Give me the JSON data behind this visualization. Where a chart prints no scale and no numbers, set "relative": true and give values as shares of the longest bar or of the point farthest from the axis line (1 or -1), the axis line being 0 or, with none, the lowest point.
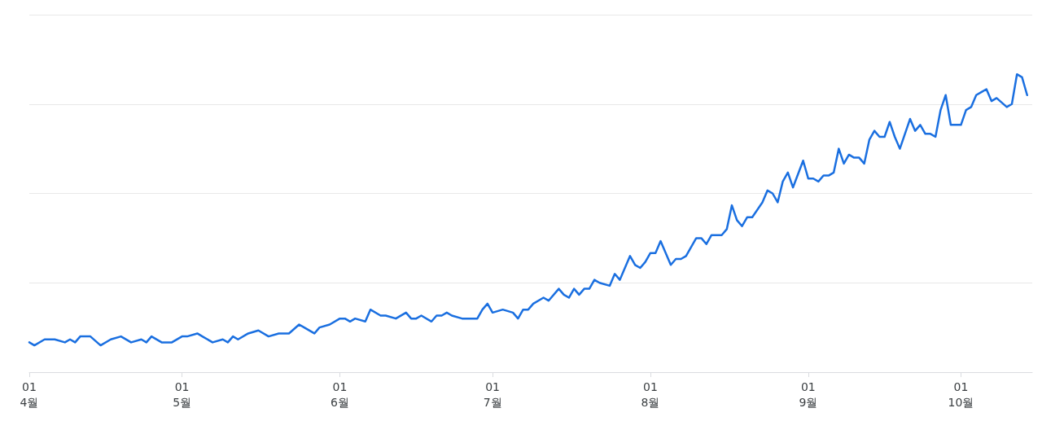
{
  "chart_data": {
    "type": "line",
    "relative": true,
    "marker": "none",
    "grid": "y",
    "line_style": "solid",
    "xlim": [
      "--04-01",
      "--10-15"
    ],
    "xticks": [
      {
        "value": "--04-01",
        "label": "01\n4월"
      },
      {
        "value": "--05-01",
        "label": "01\n5월"
      },
      {
        "value": "--06-01",
        "label": "01\n6월"
      },
      {
        "value": "--07-01",
        "label": "01\n7월"
      },
      {
        "value": "--08-01",
        "label": "01\n8월"
      },
      {
        "value": "--09-01",
        "label": "01\n9월"
      },
      {
        "value": "--10-01",
        "label": "01\n10월"
      }
    ],
    "series": [
      {
        "color": "#1a6fe0",
        "x": [
          "--04-01",
          "--04-02",
          "--04-04",
          "--04-06",
          "--04-08",
          "--04-09",
          "--04-10",
          "--04-11",
          "--04-13",
          "--04-15",
          "--04-17",
          "--04-19",
          "--04-21",
          "--04-23",
          "--04-24",
          "--04-25",
          "--04-27",
          "--04-29",
          "--05-01",
          "--05-02",
          "--05-04",
          "--05-05",
          "--05-07",
          "--05-09",
          "--05-10",
          "--05-11",
          "--05-12",
          "--05-14",
          "--05-16",
          "--05-18",
          "--05-20",
          "--05-22",
          "--05-24",
          "--05-25",
          "--05-27",
          "--05-28",
          "--05-30",
          "--06-01",
          "--06-02",
          "--06-03",
          "--06-04",
          "--06-06",
          "--06-07",
          "--06-09",
          "--06-10",
          "--06-12",
          "--06-14",
          "--06-15",
          "--06-16",
          "--06-17",
          "--06-19",
          "--06-20",
          "--06-21",
          "--06-22",
          "--06-23",
          "--06-25",
          "--06-27",
          "--06-28",
          "--06-29",
          "--06-30",
          "--07-01",
          "--07-03",
          "--07-05",
          "--07-06",
          "--07-07",
          "--07-08",
          "--07-09",
          "--07-11",
          "--07-12",
          "--07-14",
          "--07-15",
          "--07-16",
          "--07-17",
          "--07-18",
          "--07-19",
          "--07-20",
          "--07-21",
          "--07-22",
          "--07-24",
          "--07-25",
          "--07-26",
          "--07-28",
          "--07-29",
          "--07-30",
          "--07-31",
          "--08-01",
          "--08-02",
          "--08-03",
          "--08-05",
          "--08-06",
          "--08-07",
          "--08-08",
          "--08-10",
          "--08-11",
          "--08-12",
          "--08-13",
          "--08-15",
          "--08-16",
          "--08-17",
          "--08-18",
          "--08-19",
          "--08-20",
          "--08-21",
          "--08-23",
          "--08-24",
          "--08-25",
          "--08-26",
          "--08-27",
          "--08-28",
          "--08-29",
          "--08-31",
          "--09-01",
          "--09-02",
          "--09-03",
          "--09-04",
          "--09-05",
          "--09-06",
          "--09-07",
          "--09-08",
          "--09-09",
          "--09-10",
          "--09-11",
          "--09-12",
          "--09-13",
          "--09-14",
          "--09-15",
          "--09-16",
          "--09-17",
          "--09-18",
          "--09-19",
          "--09-21",
          "--09-22",
          "--09-23",
          "--09-24",
          "--09-25",
          "--09-26",
          "--09-27",
          "--09-28",
          "--09-29",
          "--10-01",
          "--10-02",
          "--10-03",
          "--10-04",
          "--10-05",
          "--10-06",
          "--10-07",
          "--10-08",
          "--10-10",
          "--10-11",
          "--10-12",
          "--10-13",
          "--10-14"
        ],
        "values": [
          0.1,
          0.09,
          0.11,
          0.11,
          0.1,
          0.11,
          0.1,
          0.12,
          0.12,
          0.09,
          0.11,
          0.12,
          0.1,
          0.11,
          0.1,
          0.12,
          0.1,
          0.1,
          0.12,
          0.12,
          0.13,
          0.12,
          0.1,
          0.11,
          0.1,
          0.12,
          0.11,
          0.13,
          0.14,
          0.12,
          0.13,
          0.13,
          0.16,
          0.15,
          0.13,
          0.15,
          0.16,
          0.18,
          0.18,
          0.17,
          0.18,
          0.17,
          0.21,
          0.19,
          0.19,
          0.18,
          0.2,
          0.18,
          0.18,
          0.19,
          0.17,
          0.19,
          0.19,
          0.2,
          0.19,
          0.18,
          0.18,
          0.18,
          0.21,
          0.23,
          0.2,
          0.21,
          0.2,
          0.18,
          0.21,
          0.21,
          0.23,
          0.25,
          0.24,
          0.28,
          0.26,
          0.25,
          0.28,
          0.26,
          0.28,
          0.28,
          0.31,
          0.3,
          0.29,
          0.33,
          0.31,
          0.39,
          0.36,
          0.35,
          0.37,
          0.4,
          0.4,
          0.44,
          0.36,
          0.38,
          0.38,
          0.39,
          0.45,
          0.45,
          0.43,
          0.46,
          0.46,
          0.48,
          0.56,
          0.51,
          0.49,
          0.52,
          0.52,
          0.57,
          0.61,
          0.6,
          0.57,
          0.64,
          0.67,
          0.62,
          0.71,
          0.65,
          0.65,
          0.64,
          0.66,
          0.66,
          0.67,
          0.75,
          0.7,
          0.73,
          0.72,
          0.72,
          0.7,
          0.78,
          0.81,
          0.79,
          0.79,
          0.84,
          0.79,
          0.75,
          0.85,
          0.81,
          0.83,
          0.8,
          0.8,
          0.79,
          0.88,
          0.93,
          0.83,
          0.83,
          0.88,
          0.89,
          0.93,
          0.94,
          0.95,
          0.91,
          0.92,
          0.89,
          0.9,
          1,
          0.99,
          0.93
        ]
      }
    ]
  }
}
